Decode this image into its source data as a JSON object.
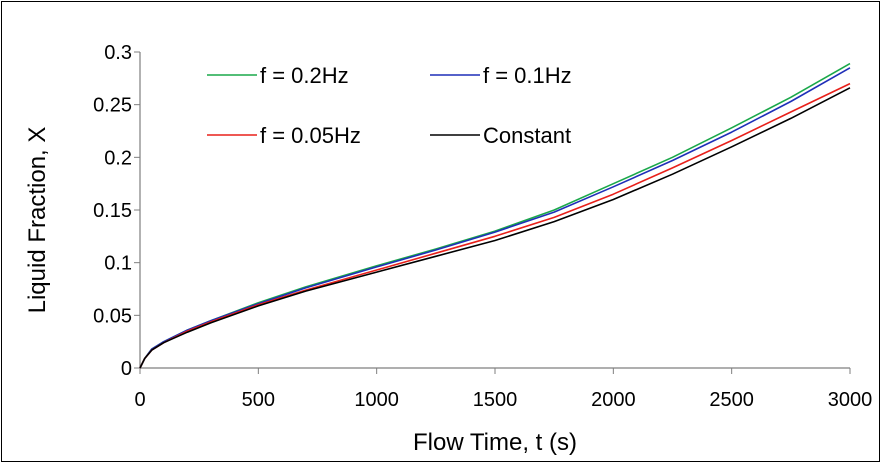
{
  "chart_data": {
    "type": "line",
    "xlabel": "Flow Time, t (s)",
    "ylabel": "Liquid Fraction, X",
    "xlim": [
      0,
      3000
    ],
    "ylim": [
      0,
      0.3
    ],
    "xticks": [
      0,
      500,
      1000,
      1500,
      2000,
      2500,
      3000
    ],
    "xtick_labels": [
      "0",
      "500",
      "1000",
      "1500",
      "2000",
      "2500",
      "3000"
    ],
    "yticks": [
      0,
      0.05,
      0.1,
      0.15,
      0.2,
      0.25,
      0.3
    ],
    "ytick_labels": [
      "0",
      "0.05",
      "0.1",
      "0.15",
      "0.2",
      "0.25",
      "0.3"
    ],
    "grid": false,
    "legend_position": "top-left",
    "x": [
      0,
      20,
      50,
      100,
      200,
      300,
      500,
      700,
      1000,
      1250,
      1500,
      1750,
      2000,
      2250,
      2500,
      2750,
      3000
    ],
    "series": [
      {
        "name": "f = 0.2Hz",
        "color": "#1aa84a",
        "values": [
          0,
          0.009,
          0.018,
          0.025,
          0.036,
          0.045,
          0.062,
          0.077,
          0.097,
          0.113,
          0.13,
          0.15,
          0.175,
          0.2,
          0.228,
          0.257,
          0.289
        ]
      },
      {
        "name": "f = 0.1Hz",
        "color": "#1f2fb8",
        "values": [
          0,
          0.009,
          0.018,
          0.025,
          0.036,
          0.045,
          0.061,
          0.076,
          0.096,
          0.112,
          0.129,
          0.148,
          0.172,
          0.197,
          0.224,
          0.253,
          0.285
        ]
      },
      {
        "name": "f = 0.05Hz",
        "color": "#e8201a",
        "values": [
          0,
          0.009,
          0.017,
          0.024,
          0.035,
          0.044,
          0.06,
          0.074,
          0.093,
          0.109,
          0.125,
          0.143,
          0.165,
          0.19,
          0.216,
          0.243,
          0.27
        ]
      },
      {
        "name": "Constant",
        "color": "#000000",
        "values": [
          0,
          0.009,
          0.017,
          0.024,
          0.034,
          0.043,
          0.059,
          0.073,
          0.091,
          0.106,
          0.121,
          0.139,
          0.16,
          0.184,
          0.21,
          0.237,
          0.266
        ]
      }
    ]
  }
}
